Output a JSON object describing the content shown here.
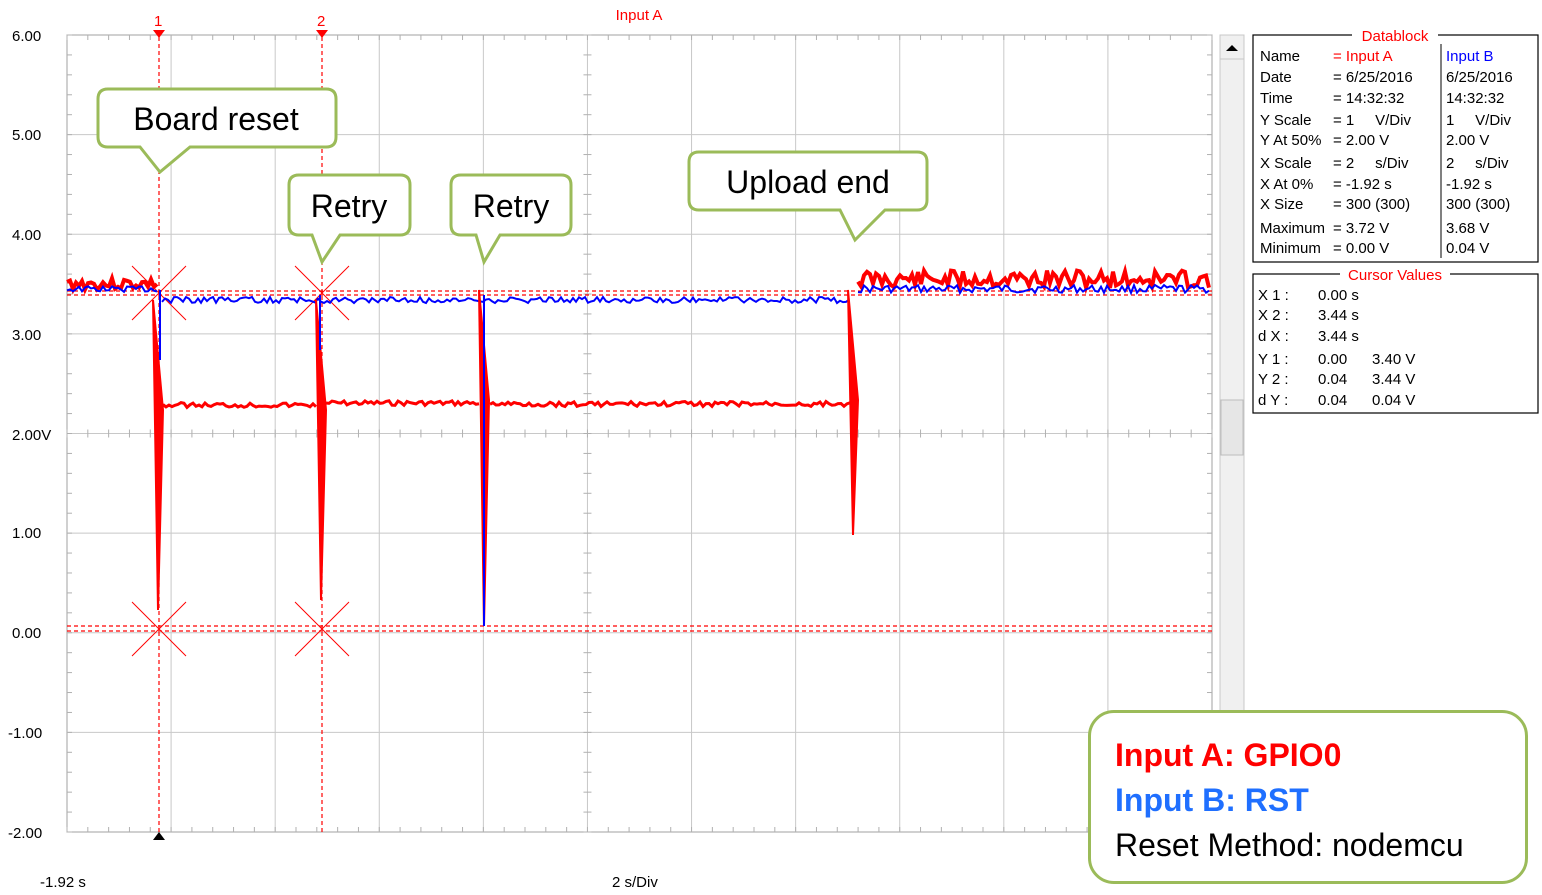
{
  "window": {
    "title": "Input A"
  },
  "colors": {
    "input_a": "#ff0000",
    "input_b": "#0000ff",
    "callout_border": "#9bbb59",
    "grid": "#c0c0c0"
  },
  "axes": {
    "y_ticks": [
      "6.00",
      "5.00",
      "4.00",
      "3.00",
      "2.00V",
      "1.00",
      "0.00",
      "-1.00",
      "-2.00"
    ],
    "x_start": "-1.92 s",
    "x_scale": "2 s/Div"
  },
  "cursors": {
    "c1": "1",
    "c2": "2"
  },
  "callouts": {
    "board_reset": "Board reset",
    "retry1": "Retry",
    "retry2": "Retry",
    "upload_end": "Upload end"
  },
  "datablock": {
    "title": "Datablock",
    "name_label": "Name",
    "name_a": "= Input A",
    "name_b": "Input B",
    "rows": [
      {
        "label": "Date",
        "a": "= 6/25/2016",
        "b": "6/25/2016"
      },
      {
        "label": "Time",
        "a": "= 14:32:32",
        "b": "14:32:32"
      },
      {
        "label": "Y Scale",
        "a": "= 1     V/Div",
        "b": "1     V/Div"
      },
      {
        "label": "Y At 50%",
        "a": "= 2.00 V",
        "b": "2.00 V"
      },
      {
        "label": "X Scale",
        "a": "= 2     s/Div",
        "b": "2     s/Div"
      },
      {
        "label": "X At 0%",
        "a": "= -1.92 s",
        "b": "-1.92 s"
      },
      {
        "label": "X Size",
        "a": "= 300 (300)",
        "b": "300 (300)"
      },
      {
        "label": "Maximum",
        "a": "= 3.72 V",
        "b": "3.68 V"
      },
      {
        "label": "Minimum",
        "a": "= 0.00 V",
        "b": "0.04 V"
      }
    ]
  },
  "cursor_values": {
    "title": "Cursor Values",
    "rows": [
      {
        "label": "X 1 :",
        "v1": "0.00 s",
        "v2": ""
      },
      {
        "label": "X 2 :",
        "v1": "3.44 s",
        "v2": ""
      },
      {
        "label": "d X :",
        "v1": "3.44 s",
        "v2": ""
      },
      {
        "label": "Y 1 :",
        "v1": "0.00",
        "v2": "3.40 V"
      },
      {
        "label": "Y 2 :",
        "v1": "0.04",
        "v2": "3.44 V"
      },
      {
        "label": "d Y :",
        "v1": "0.04",
        "v2": "0.04 V"
      }
    ]
  },
  "legend": {
    "input_a": "Input A: GPIO0",
    "input_b": "Input B: RST",
    "method": "Reset Method: nodemcu"
  }
}
